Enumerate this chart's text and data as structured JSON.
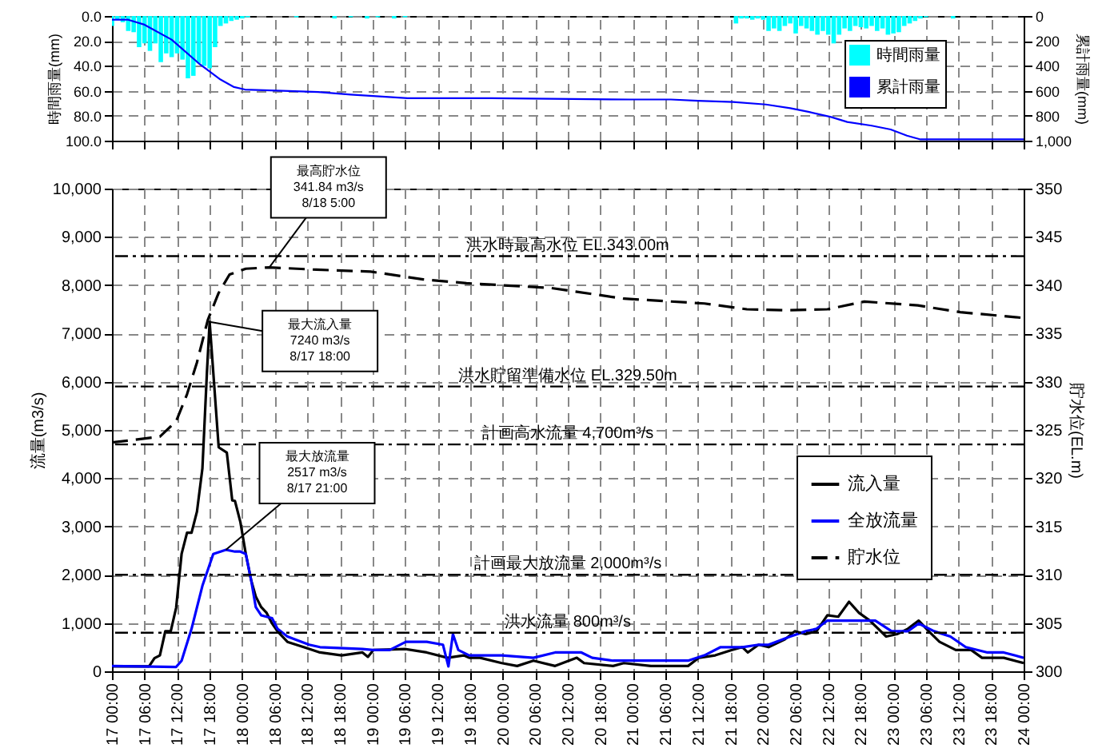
{
  "chart_data": [
    {
      "type": "bar",
      "ylabel": "時間雨量(mm)",
      "y2label": "累計雨量(mm)",
      "xlim": [
        "--08-17T00:00",
        "--08-24T00:00"
      ],
      "xticks": [
        {
          "value": "--08-17T00:00",
          "label": null
        },
        {
          "value": "--08-17T06:00",
          "label": null
        },
        {
          "value": "--08-17T12:00",
          "label": null
        },
        {
          "value": "--08-17T18:00",
          "label": null
        },
        {
          "value": "--08-18T00:00",
          "label": null
        },
        {
          "value": "--08-18T06:00",
          "label": null
        },
        {
          "value": "--08-18T12:00",
          "label": null
        },
        {
          "value": "--08-18T18:00",
          "label": null
        },
        {
          "value": "--08-19T00:00",
          "label": null
        },
        {
          "value": "--08-19T06:00",
          "label": null
        },
        {
          "value": "--08-19T12:00",
          "label": null
        },
        {
          "value": "--08-19T18:00",
          "label": null
        },
        {
          "value": "--08-20T00:00",
          "label": null
        },
        {
          "value": "--08-20T06:00",
          "label": null
        },
        {
          "value": "--08-20T12:00",
          "label": null
        },
        {
          "value": "--08-20T18:00",
          "label": null
        },
        {
          "value": "--08-21T00:00",
          "label": null
        },
        {
          "value": "--08-21T06:00",
          "label": null
        },
        {
          "value": "--08-21T12:00",
          "label": null
        },
        {
          "value": "--08-21T18:00",
          "label": null
        },
        {
          "value": "--08-22T00:00",
          "label": null
        },
        {
          "value": "--08-22T06:00",
          "label": null
        },
        {
          "value": "--08-22T12:00",
          "label": null
        },
        {
          "value": "--08-22T18:00",
          "label": null
        },
        {
          "value": "--08-23T00:00",
          "label": null
        },
        {
          "value": "--08-23T06:00",
          "label": null
        },
        {
          "value": "--08-23T12:00",
          "label": null
        },
        {
          "value": "--08-23T18:00",
          "label": null
        },
        {
          "value": "--08-24T00:00",
          "label": null
        }
      ],
      "ylim": [
        100,
        0
      ],
      "yticks": [
        {
          "value": 0,
          "label": "0.0"
        },
        {
          "value": 20,
          "label": "20.0"
        },
        {
          "value": 40,
          "label": "40.0"
        },
        {
          "value": 60,
          "label": "60.0"
        },
        {
          "value": 80,
          "label": "80.0"
        },
        {
          "value": 100,
          "label": "100.0"
        }
      ],
      "y2lim": [
        1000,
        0
      ],
      "y2ticks": [
        0,
        200,
        400,
        600,
        800,
        {
          "value": 1000,
          "label": "1,000"
        }
      ],
      "grid": true,
      "legend": "right",
      "tick_labels": "y",
      "series": [
        {
          "name": "時間雨量",
          "color": "#00ffff",
          "x": [
            "--08-17T00:00",
            "--08-17T01:00",
            "--08-17T02:00",
            "--08-17T03:00",
            "--08-17T04:00",
            "--08-17T05:00",
            "--08-17T06:00",
            "--08-17T07:00",
            "--08-17T08:00",
            "--08-17T09:00",
            "--08-17T10:00",
            "--08-17T11:00",
            "--08-17T12:00",
            "--08-17T13:00",
            "--08-17T14:00",
            "--08-17T15:00",
            "--08-17T16:00",
            "--08-17T17:00",
            "--08-17T18:00",
            "--08-17T19:00",
            "--08-17T20:00",
            "--08-17T21:00",
            "--08-17T22:00",
            "--08-17T23:00",
            "--08-18T00:00",
            "--08-18T01:00",
            "--08-18T10:00",
            "--08-18T17:00",
            "--08-18T20:00",
            "--08-18T23:00",
            "--08-19T01:00",
            "--08-19T04:00",
            "--08-19T06:00",
            "--08-21T19:00",
            "--08-21T20:00",
            "--08-21T21:00",
            "--08-21T22:00",
            "--08-21T23:00",
            "--08-22T00:00",
            "--08-22T01:00",
            "--08-22T02:00",
            "--08-22T03:00",
            "--08-22T04:00",
            "--08-22T05:00",
            "--08-22T06:00",
            "--08-22T07:00",
            "--08-22T08:00",
            "--08-22T09:00",
            "--08-22T10:00",
            "--08-22T11:00",
            "--08-22T12:00",
            "--08-22T13:00",
            "--08-22T14:00",
            "--08-22T15:00",
            "--08-22T16:00",
            "--08-22T17:00",
            "--08-22T18:00",
            "--08-22T19:00",
            "--08-22T20:00",
            "--08-22T21:00",
            "--08-22T22:00",
            "--08-22T23:00",
            "--08-23T00:00",
            "--08-23T01:00",
            "--08-23T02:00",
            "--08-23T03:00",
            "--08-23T04:00",
            "--08-23T05:00",
            "--08-23T06:00",
            "--08-23T11:00"
          ],
          "values": [
            8,
            3,
            5,
            12,
            13,
            25,
            22,
            28,
            22,
            37,
            30,
            33,
            30,
            35,
            50,
            48,
            38,
            40,
            42,
            25,
            8,
            6,
            4,
            3,
            2,
            1,
            1,
            2,
            1,
            2,
            1,
            2,
            1,
            6,
            2,
            2,
            3,
            2,
            3,
            12,
            10,
            12,
            8,
            6,
            14,
            8,
            10,
            12,
            15,
            12,
            15,
            22,
            15,
            10,
            12,
            8,
            9,
            10,
            8,
            12,
            10,
            15,
            14,
            13,
            8,
            6,
            4,
            2,
            1,
            2
          ]
        },
        {
          "name": "累計雨量",
          "type": "line",
          "axis": "y2",
          "color": "#0000ff",
          "x": [
            "--08-17T00:00",
            "--08-17T03:00",
            "--08-17T06:00",
            "--08-17T11:00",
            "--08-17T16:00",
            "--08-17T20:00",
            "--08-17T22:30",
            "--08-18T00:30",
            "--08-18T07:30",
            "--08-18T14:00",
            "--08-18T20:00",
            "--08-19T06:30",
            "--08-19T22:00",
            "--08-20T23:30",
            "--08-21T07:00",
            "--08-21T12:00",
            "--08-21T18:30",
            "--08-22T00:30",
            "--08-22T05:00",
            "--08-22T08:30",
            "--08-22T12:30",
            "--08-22T15:30",
            "--08-22T20:00",
            "--08-22T23:30",
            "--08-23T02:30",
            "--08-23T05:00",
            "--08-23T10:30",
            "--08-24T00:00"
          ],
          "values": [
            30,
            30,
            70,
            190,
            380,
            510,
            570,
            590,
            600,
            610,
            630,
            660,
            660,
            670,
            670,
            680,
            690,
            710,
            740,
            770,
            810,
            850,
            880,
            910,
            960,
            990,
            990,
            990
          ]
        }
      ]
    },
    {
      "type": "line",
      "ylabel": "流量(m3/s)",
      "y2label": "貯水位(EL.m)",
      "xlim": [
        "--08-17T00:00",
        "--08-24T00:00"
      ],
      "xticks": [
        {
          "value": "--08-17T00:00",
          "label": "17 00:00"
        },
        {
          "value": "--08-17T06:00",
          "label": "17 06:00"
        },
        {
          "value": "--08-17T12:00",
          "label": "17 12:00"
        },
        {
          "value": "--08-17T18:00",
          "label": "17 18:00"
        },
        {
          "value": "--08-18T00:00",
          "label": "18 00:00"
        },
        {
          "value": "--08-18T06:00",
          "label": "18 06:00"
        },
        {
          "value": "--08-18T12:00",
          "label": "18 12:00"
        },
        {
          "value": "--08-18T18:00",
          "label": "18 18:00"
        },
        {
          "value": "--08-19T00:00",
          "label": "19 00:00"
        },
        {
          "value": "--08-19T06:00",
          "label": "19 06:00"
        },
        {
          "value": "--08-19T12:00",
          "label": "19 12:00"
        },
        {
          "value": "--08-19T18:00",
          "label": "19 18:00"
        },
        {
          "value": "--08-20T00:00",
          "label": "20 00:00"
        },
        {
          "value": "--08-20T06:00",
          "label": "20 06:00"
        },
        {
          "value": "--08-20T12:00",
          "label": "20 12:00"
        },
        {
          "value": "--08-20T18:00",
          "label": "20 18:00"
        },
        {
          "value": "--08-21T00:00",
          "label": "21 00:00"
        },
        {
          "value": "--08-21T06:00",
          "label": "21 06:00"
        },
        {
          "value": "--08-21T12:00",
          "label": "21 12:00"
        },
        {
          "value": "--08-21T18:00",
          "label": "21 18:00"
        },
        {
          "value": "--08-22T00:00",
          "label": "22 00:00"
        },
        {
          "value": "--08-22T06:00",
          "label": "22 06:00"
        },
        {
          "value": "--08-22T12:00",
          "label": "22 12:00"
        },
        {
          "value": "--08-22T18:00",
          "label": "22 18:00"
        },
        {
          "value": "--08-23T00:00",
          "label": "23 00:00"
        },
        {
          "value": "--08-23T06:00",
          "label": "23 06:00"
        },
        {
          "value": "--08-23T12:00",
          "label": "23 12:00"
        },
        {
          "value": "--08-23T18:00",
          "label": "23 18:00"
        },
        {
          "value": "--08-24T00:00",
          "label": "24 00:00"
        }
      ],
      "ylim": [
        0,
        10000
      ],
      "yticks": [
        0,
        {
          "value": 1000,
          "label": "1,000"
        },
        {
          "value": 2000,
          "label": "2,000"
        },
        {
          "value": 3000,
          "label": "3,000"
        },
        {
          "value": 4000,
          "label": "4,000"
        },
        {
          "value": 5000,
          "label": "5,000"
        },
        {
          "value": 6000,
          "label": "6,000"
        },
        {
          "value": 7000,
          "label": "7,000"
        },
        {
          "value": 8000,
          "label": "8,000"
        },
        {
          "value": 9000,
          "label": "9,000"
        },
        {
          "value": 10000,
          "label": "10,000"
        }
      ],
      "y2lim": [
        300,
        350
      ],
      "y2ticks": [
        300,
        305,
        310,
        315,
        320,
        325,
        330,
        335,
        340,
        345,
        350
      ],
      "grid": true,
      "legend": "bottom right",
      "series": [
        {
          "name": "流入量",
          "color": "#000000",
          "x": [
            "--08-17T00:00",
            "--08-17T06:50",
            "--08-17T07:50",
            "--08-17T08:50",
            "--08-17T09:50",
            "--08-17T10:50",
            "--08-17T11:50",
            "--08-17T12:50",
            "--08-17T13:50",
            "--08-17T14:40",
            "--08-17T15:40",
            "--08-17T16:40",
            "--08-17T17:30",
            "--08-17T18:00",
            "--08-17T19:40",
            "--08-17T21:10",
            "--08-17T22:10",
            "--08-17T22:40",
            "--08-17T23:40",
            "--08-18T00:40",
            "--08-18T01:40",
            "--08-18T02:30",
            "--08-18T03:30",
            "--08-18T04:30",
            "--08-18T05:30",
            "--08-18T06:30",
            "--08-18T08:20",
            "--08-18T11:20",
            "--08-18T14:20",
            "--08-18T18:20",
            "--08-18T22:10",
            "--08-18T23:10",
            "--08-19T00:10",
            "--08-19T06:10",
            "--08-19T10:00",
            "--08-19T13:50",
            "--08-19T16:50",
            "--08-19T17:50",
            "--08-19T19:50",
            "--08-19T23:50",
            "--08-20T02:40",
            "--08-20T05:40",
            "--08-20T09:40",
            "--08-20T13:40",
            "--08-20T15:00",
            "--08-20T20:20",
            "--08-20T22:20",
            "--08-21T03:20",
            "--08-21T10:10",
            "--08-21T12:10",
            "--08-21T15:10",
            "--08-21T18:10",
            "--08-21T20:10",
            "--08-21T21:10",
            "--08-21T23:10",
            "--08-22T01:00",
            "--08-22T04:00",
            "--08-22T05:50",
            "--08-22T07:50",
            "--08-22T09:50",
            "--08-22T11:50",
            "--08-22T13:50",
            "--08-22T15:50",
            "--08-22T17:40",
            "--08-22T19:40",
            "--08-22T22:40",
            "--08-23T00:40",
            "--08-23T02:40",
            "--08-23T04:40",
            "--08-23T06:30",
            "--08-23T08:30",
            "--08-23T11:30",
            "--08-23T14:20",
            "--08-23T16:20",
            "--08-23T20:20",
            "--08-24T00:00"
          ],
          "values": [
            100,
            100,
            270,
            330,
            830,
            830,
            1320,
            2430,
            2870,
            2870,
            3310,
            4200,
            6190,
            7240,
            4640,
            4530,
            3540,
            3530,
            3090,
            2430,
            1880,
            1550,
            1330,
            1210,
            990,
            830,
            610,
            500,
            390,
            330,
            390,
            300,
            440,
            460,
            390,
            280,
            330,
            280,
            280,
            170,
            110,
            220,
            110,
            280,
            170,
            110,
            170,
            110,
            110,
            280,
            330,
            440,
            500,
            390,
            550,
            500,
            660,
            830,
            770,
            830,
            1160,
            1130,
            1440,
            1210,
            1050,
            720,
            770,
            880,
            1050,
            830,
            610,
            440,
            440,
            280,
            280,
            170
          ]
        },
        {
          "name": "全放流量",
          "color": "#0000ff",
          "x": [
            "--08-17T00:00",
            "--08-17T11:50",
            "--08-17T12:50",
            "--08-17T14:40",
            "--08-17T16:40",
            "--08-17T18:40",
            "--08-17T21:00",
            "--08-17T22:40",
            "--08-17T23:40",
            "--08-18T00:40",
            "--08-18T01:40",
            "--08-18T02:30",
            "--08-18T03:30",
            "--08-18T05:30",
            "--08-18T06:30",
            "--08-18T08:20",
            "--08-18T12:20",
            "--08-18T14:20",
            "--08-18T22:10",
            "--08-19T00:10",
            "--08-19T03:10",
            "--08-19T06:10",
            "--08-19T10:00",
            "--08-19T13:00",
            "--08-19T14:00",
            "--08-19T14:50",
            "--08-19T15:50",
            "--08-19T17:50",
            "--08-19T23:50",
            "--08-20T05:40",
            "--08-20T09:40",
            "--08-20T14:30",
            "--08-20T16:30",
            "--08-20T20:20",
            "--08-21T10:10",
            "--08-21T13:10",
            "--08-21T16:10",
            "--08-21T20:10",
            "--08-21T23:10",
            "--08-22T01:00",
            "--08-22T05:00",
            "--08-22T07:50",
            "--08-22T09:50",
            "--08-22T11:50",
            "--08-22T14:50",
            "--08-22T17:40",
            "--08-22T20:40",
            "--08-22T23:40",
            "--08-23T02:40",
            "--08-23T04:40",
            "--08-23T07:30",
            "--08-23T10:30",
            "--08-23T13:20",
            "--08-23T17:20",
            "--08-23T20:20",
            "--08-24T00:00"
          ],
          "values": [
            110,
            90,
            220,
            880,
            1770,
            2430,
            2517,
            2480,
            2480,
            2430,
            1880,
            1330,
            1160,
            1100,
            880,
            720,
            550,
            500,
            460,
            440,
            440,
            610,
            610,
            550,
            100,
            770,
            440,
            330,
            330,
            280,
            390,
            390,
            280,
            220,
            220,
            330,
            500,
            500,
            550,
            550,
            720,
            830,
            880,
            1050,
            1050,
            1050,
            1050,
            830,
            830,
            990,
            830,
            720,
            500,
            390,
            390,
            280
          ]
        },
        {
          "name": "貯水位",
          "axis": "y2",
          "color": "#000000",
          "line_style": "dashed",
          "x": [
            "--08-17T00:00",
            "--08-17T08:50",
            "--08-17T11:50",
            "--08-17T13:50",
            "--08-17T15:40",
            "--08-17T17:40",
            "--08-17T19:40",
            "--08-17T21:40",
            "--08-18T00:40",
            "--08-18T05:00",
            "--08-18T13:40",
            "--08-18T23:40",
            "--08-19T09:20",
            "--08-19T17:20",
            "--08-20T09:00",
            "--08-20T22:20",
            "--08-21T13:10",
            "--08-21T21:00",
            "--08-22T03:50",
            "--08-22T11:50",
            "--08-22T18:40",
            "--08-23T04:30",
            "--08-23T12:20",
            "--08-24T00:00"
          ],
          "values": [
            323.7,
            324.3,
            325.9,
            328.7,
            332,
            336.4,
            339.2,
            341.1,
            341.7,
            341.84,
            341.6,
            341.4,
            340.6,
            340.2,
            339.7,
            338.6,
            338.1,
            337.5,
            337.4,
            337.5,
            338.3,
            337.9,
            337.2,
            336.6
          ]
        }
      ],
      "ref_lines": [
        {
          "axis": "y2",
          "value": 343,
          "label": "洪水時最高水位 EL.343.00m",
          "line_style": "dashed"
        },
        {
          "axis": "y2",
          "value": 329.5,
          "label": "洪水貯留準備水位 EL.329.50m",
          "line_style": "dashed"
        },
        {
          "axis": "y",
          "value": 4700,
          "label": "計画高水流量 4,700m³/s",
          "line_style": "dashed"
        },
        {
          "axis": "y",
          "value": 2000,
          "label": "計画最大放流量 2,000m³/s",
          "line_style": "dashed"
        },
        {
          "axis": "y",
          "value": 800,
          "label": "洪水流量 800m³/s",
          "line_style": "dashed"
        }
      ],
      "annotations": [
        {
          "text": "最高貯水位\n341.84 m3/s\n8/18 5:00",
          "x": "--08-18T05:00",
          "y": 8368
        },
        {
          "text": "最大流入量\n7240 m3/s\n8/17 18:00",
          "x": "--08-17T18:00",
          "y": 7240
        },
        {
          "text": "最大放流量\n2517 m3/s\n8/17 21:00",
          "x": "--08-17T21:00",
          "y": 2517
        }
      ]
    }
  ]
}
